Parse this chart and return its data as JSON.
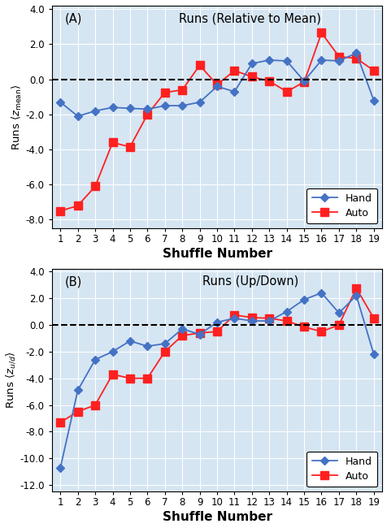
{
  "x": [
    1,
    2,
    3,
    4,
    5,
    6,
    7,
    8,
    9,
    10,
    11,
    12,
    13,
    14,
    15,
    16,
    17,
    18,
    19
  ],
  "panel_A": {
    "title": "Runs (Relative to Mean)",
    "label": "(A)",
    "ylim": [
      -8.5,
      4.2
    ],
    "yticks": [
      -8.0,
      -6.0,
      -4.0,
      -2.0,
      0.0,
      2.0,
      4.0
    ],
    "hand": [
      -1.3,
      -2.1,
      -1.8,
      -1.6,
      -1.65,
      -1.7,
      -1.5,
      -1.5,
      -1.3,
      -0.4,
      -0.7,
      0.9,
      1.1,
      1.05,
      -0.1,
      1.1,
      1.05,
      1.5,
      -1.2
    ],
    "auto": [
      -7.5,
      -7.2,
      -6.1,
      -3.6,
      -3.85,
      -2.0,
      -0.75,
      -0.6,
      0.8,
      -0.3,
      0.5,
      0.15,
      -0.1,
      -0.7,
      -0.15,
      2.65,
      1.3,
      1.2,
      0.5
    ]
  },
  "panel_B": {
    "title": "Runs (Up/Down)",
    "label": "(B)",
    "ylim": [
      -12.5,
      4.2
    ],
    "yticks": [
      -12.0,
      -10.0,
      -8.0,
      -6.0,
      -4.0,
      -2.0,
      0.0,
      2.0,
      4.0
    ],
    "hand": [
      -10.7,
      -4.9,
      -2.6,
      -2.0,
      -1.2,
      -1.6,
      -1.4,
      -0.3,
      -0.7,
      0.2,
      0.5,
      0.3,
      0.3,
      1.0,
      1.9,
      2.4,
      0.9,
      2.2,
      -2.2
    ],
    "auto": [
      -7.3,
      -6.5,
      -6.0,
      -3.7,
      -4.0,
      -4.0,
      -2.0,
      -0.8,
      -0.6,
      -0.5,
      0.75,
      0.55,
      0.5,
      0.3,
      -0.15,
      -0.5,
      0.0,
      2.75,
      0.5
    ]
  },
  "hand_color": "#4472C4",
  "auto_color": "#FF2020",
  "bg_color": "#D5E5F2",
  "grid_color": "#FFFFFF",
  "xlabel": "Shuffle Number",
  "hand_marker": "D",
  "auto_marker": "s",
  "hand_marker_size": 5,
  "auto_marker_size": 7
}
